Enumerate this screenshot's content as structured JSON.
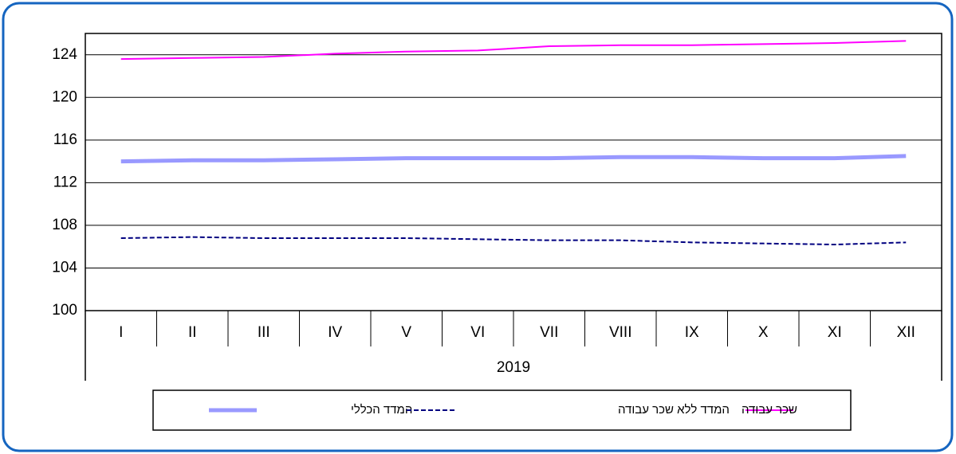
{
  "chart_data": {
    "type": "line",
    "categories": [
      "I",
      "II",
      "III",
      "IV",
      "V",
      "VI",
      "VII",
      "VIII",
      "IX",
      "X",
      "XI",
      "XII"
    ],
    "x_group_label": "2019",
    "series": [
      {
        "name": "המדד הכללי",
        "color": "#9999ff",
        "style": "thick",
        "values": [
          114.0,
          114.1,
          114.1,
          114.2,
          114.3,
          114.3,
          114.3,
          114.4,
          114.4,
          114.3,
          114.3,
          114.5
        ]
      },
      {
        "name": "המדד ללא שכר עבודה",
        "color": "#000080",
        "style": "dashed",
        "values": [
          106.8,
          106.9,
          106.8,
          106.8,
          106.8,
          106.7,
          106.6,
          106.6,
          106.4,
          106.3,
          106.2,
          106.4
        ]
      },
      {
        "name": "שכר עבודה",
        "color": "#ff00ff",
        "style": "thin",
        "values": [
          123.6,
          123.7,
          123.8,
          124.1,
          124.3,
          124.4,
          124.8,
          124.9,
          124.9,
          125.0,
          125.1,
          125.3
        ]
      }
    ],
    "ylim": [
      100,
      126
    ],
    "yticks": [
      100,
      104,
      108,
      112,
      116,
      120,
      124
    ],
    "grid": true
  }
}
